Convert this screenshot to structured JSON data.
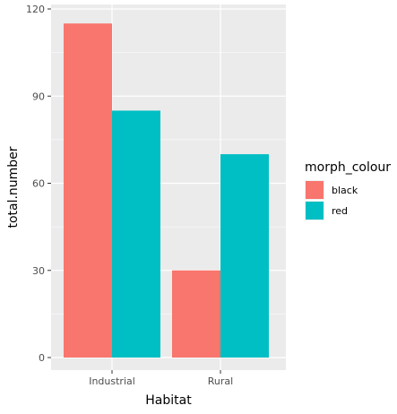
{
  "chart_data": {
    "type": "bar",
    "title": "",
    "xlabel": "Habitat",
    "ylabel": "total.number",
    "categories": [
      "Industrial",
      "Rural"
    ],
    "series": [
      {
        "name": "black",
        "values": [
          115,
          30
        ],
        "color": "#F8766D"
      },
      {
        "name": "red",
        "values": [
          85,
          70
        ],
        "color": "#00BFC4"
      }
    ],
    "ylim": [
      0,
      120
    ],
    "yticks": [
      0,
      30,
      60,
      90,
      120
    ],
    "grid": true,
    "legend": {
      "title": "morph_colour",
      "position": "right"
    }
  }
}
